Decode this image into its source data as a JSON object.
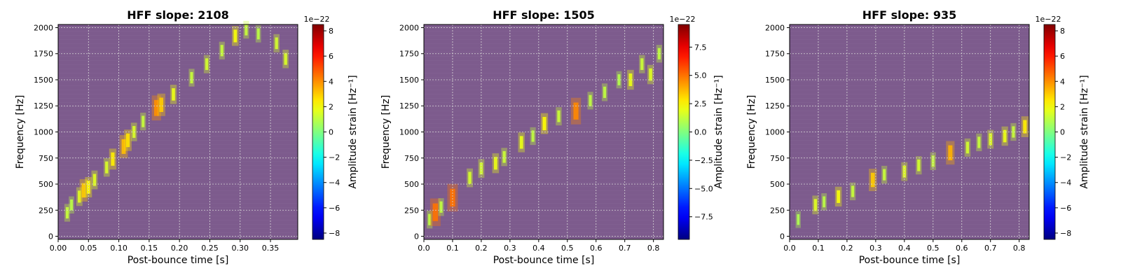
{
  "figure": {
    "colorbar_label": "Amplitude strain [Hz⁻¹]",
    "colormap": "jet",
    "background_color": "#7d5b8d"
  },
  "chart_data": [
    {
      "type": "heatmap",
      "title": "HFF slope: 2108",
      "xlabel": "Post-bounce time [s]",
      "ylabel": "Frequency [Hz]",
      "xlim": [
        0,
        0.395
      ],
      "ylim": [
        -30,
        2030
      ],
      "x_ticks": [
        0.0,
        0.05,
        0.1,
        0.15,
        0.2,
        0.25,
        0.3,
        0.35
      ],
      "x_tick_labels": [
        "0.00",
        "0.05",
        "0.10",
        "0.15",
        "0.20",
        "0.25",
        "0.30",
        "0.35"
      ],
      "y_ticks": [
        0,
        250,
        500,
        750,
        1000,
        1250,
        1500,
        1750,
        2000
      ],
      "y_tick_labels": [
        "0",
        "250",
        "500",
        "750",
        "1000",
        "1250",
        "1500",
        "1750",
        "2000"
      ],
      "grid": true,
      "colorbar": {
        "min": -8.5,
        "max": 8.5,
        "ticks": [
          -8,
          -6,
          -4,
          -2,
          0,
          2,
          4,
          6,
          8
        ],
        "tick_labels": [
          "−8",
          "−6",
          "−4",
          "−2",
          "0",
          "2",
          "4",
          "6",
          "8"
        ],
        "exponent_label": "1e−22"
      },
      "hot_spots": [
        {
          "t": 0.015,
          "f": 225,
          "v": 1.2
        },
        {
          "t": 0.022,
          "f": 300,
          "v": 1.0
        },
        {
          "t": 0.035,
          "f": 380,
          "v": 1.6
        },
        {
          "t": 0.042,
          "f": 440,
          "v": 3.0
        },
        {
          "t": 0.05,
          "f": 470,
          "v": 2.2
        },
        {
          "t": 0.06,
          "f": 540,
          "v": 1.6
        },
        {
          "t": 0.08,
          "f": 660,
          "v": 1.5
        },
        {
          "t": 0.09,
          "f": 740,
          "v": 2.4
        },
        {
          "t": 0.108,
          "f": 860,
          "v": 3.2
        },
        {
          "t": 0.115,
          "f": 920,
          "v": 2.6
        },
        {
          "t": 0.125,
          "f": 1000,
          "v": 1.5
        },
        {
          "t": 0.14,
          "f": 1100,
          "v": 1.2
        },
        {
          "t": 0.162,
          "f": 1230,
          "v": 4.0
        },
        {
          "t": 0.17,
          "f": 1260,
          "v": 3.0
        },
        {
          "t": 0.19,
          "f": 1360,
          "v": 1.8
        },
        {
          "t": 0.22,
          "f": 1520,
          "v": 1.2
        },
        {
          "t": 0.245,
          "f": 1650,
          "v": 1.4
        },
        {
          "t": 0.27,
          "f": 1780,
          "v": 1.2
        },
        {
          "t": 0.292,
          "f": 1920,
          "v": 2.0
        },
        {
          "t": 0.31,
          "f": 1980,
          "v": 1.2
        },
        {
          "t": 0.33,
          "f": 1940,
          "v": 1.0
        },
        {
          "t": 0.36,
          "f": 1850,
          "v": 1.4
        },
        {
          "t": 0.375,
          "f": 1700,
          "v": 1.5
        }
      ]
    },
    {
      "type": "heatmap",
      "title": "HFF slope: 1505",
      "xlabel": "Post-bounce time [s]",
      "ylabel": "Frequency [Hz]",
      "xlim": [
        0,
        0.835
      ],
      "ylim": [
        -30,
        2030
      ],
      "x_ticks": [
        0.0,
        0.1,
        0.2,
        0.3,
        0.4,
        0.5,
        0.6,
        0.7,
        0.8
      ],
      "x_tick_labels": [
        "0.0",
        "0.1",
        "0.2",
        "0.3",
        "0.4",
        "0.5",
        "0.6",
        "0.7",
        "0.8"
      ],
      "y_ticks": [
        0,
        250,
        500,
        750,
        1000,
        1250,
        1500,
        1750,
        2000
      ],
      "y_tick_labels": [
        "0",
        "250",
        "500",
        "750",
        "1000",
        "1250",
        "1500",
        "1750",
        "2000"
      ],
      "grid": true,
      "colorbar": {
        "min": -9.5,
        "max": 9.5,
        "ticks": [
          -7.5,
          -5.0,
          -2.5,
          0.0,
          2.5,
          5.0,
          7.5
        ],
        "tick_labels": [
          "−7.5",
          "−5.0",
          "−2.5",
          "0.0",
          "2.5",
          "5.0",
          "7.5"
        ],
        "exponent_label": "1e−22"
      },
      "hot_spots": [
        {
          "t": 0.02,
          "f": 160,
          "v": 1.2
        },
        {
          "t": 0.04,
          "f": 230,
          "v": 5.0
        },
        {
          "t": 0.06,
          "f": 280,
          "v": 1.2
        },
        {
          "t": 0.1,
          "f": 370,
          "v": 5.0
        },
        {
          "t": 0.16,
          "f": 560,
          "v": 1.6
        },
        {
          "t": 0.2,
          "f": 650,
          "v": 1.6
        },
        {
          "t": 0.25,
          "f": 700,
          "v": 2.0
        },
        {
          "t": 0.28,
          "f": 760,
          "v": 1.4
        },
        {
          "t": 0.34,
          "f": 900,
          "v": 2.0
        },
        {
          "t": 0.38,
          "f": 960,
          "v": 1.2
        },
        {
          "t": 0.42,
          "f": 1080,
          "v": 2.4
        },
        {
          "t": 0.47,
          "f": 1150,
          "v": 1.4
        },
        {
          "t": 0.53,
          "f": 1200,
          "v": 4.6
        },
        {
          "t": 0.58,
          "f": 1300,
          "v": 1.2
        },
        {
          "t": 0.63,
          "f": 1380,
          "v": 1.2
        },
        {
          "t": 0.68,
          "f": 1500,
          "v": 1.0
        },
        {
          "t": 0.72,
          "f": 1500,
          "v": 2.0
        },
        {
          "t": 0.76,
          "f": 1650,
          "v": 1.4
        },
        {
          "t": 0.79,
          "f": 1550,
          "v": 1.8
        },
        {
          "t": 0.82,
          "f": 1750,
          "v": 1.2
        }
      ]
    },
    {
      "type": "heatmap",
      "title": "HFF slope: 935",
      "xlabel": "Post-bounce time [s]",
      "ylabel": "Frequency [Hz]",
      "xlim": [
        0,
        0.835
      ],
      "ylim": [
        -30,
        2030
      ],
      "x_ticks": [
        0.0,
        0.1,
        0.2,
        0.3,
        0.4,
        0.5,
        0.6,
        0.7,
        0.8
      ],
      "x_tick_labels": [
        "0.0",
        "0.1",
        "0.2",
        "0.3",
        "0.4",
        "0.5",
        "0.6",
        "0.7",
        "0.8"
      ],
      "y_ticks": [
        0,
        250,
        500,
        750,
        1000,
        1250,
        1500,
        1750,
        2000
      ],
      "y_tick_labels": [
        "0",
        "250",
        "500",
        "750",
        "1000",
        "1250",
        "1500",
        "1750",
        "2000"
      ],
      "grid": true,
      "colorbar": {
        "min": -8.5,
        "max": 8.5,
        "ticks": [
          -8,
          -6,
          -4,
          -2,
          0,
          2,
          4,
          6,
          8
        ],
        "tick_labels": [
          "−8",
          "−6",
          "−4",
          "−2",
          "0",
          "2",
          "4",
          "6",
          "8"
        ],
        "exponent_label": "1e−22"
      },
      "hot_spots": [
        {
          "t": 0.03,
          "f": 160,
          "v": 0.8
        },
        {
          "t": 0.09,
          "f": 300,
          "v": 1.6
        },
        {
          "t": 0.12,
          "f": 330,
          "v": 1.0
        },
        {
          "t": 0.17,
          "f": 380,
          "v": 2.0
        },
        {
          "t": 0.22,
          "f": 430,
          "v": 1.2
        },
        {
          "t": 0.29,
          "f": 540,
          "v": 3.0
        },
        {
          "t": 0.33,
          "f": 590,
          "v": 1.2
        },
        {
          "t": 0.4,
          "f": 620,
          "v": 1.6
        },
        {
          "t": 0.45,
          "f": 680,
          "v": 1.4
        },
        {
          "t": 0.5,
          "f": 720,
          "v": 1.2
        },
        {
          "t": 0.56,
          "f": 800,
          "v": 3.4
        },
        {
          "t": 0.62,
          "f": 850,
          "v": 1.4
        },
        {
          "t": 0.66,
          "f": 900,
          "v": 1.2
        },
        {
          "t": 0.7,
          "f": 930,
          "v": 1.6
        },
        {
          "t": 0.75,
          "f": 960,
          "v": 1.8
        },
        {
          "t": 0.78,
          "f": 1000,
          "v": 1.2
        },
        {
          "t": 0.82,
          "f": 1050,
          "v": 2.4
        }
      ]
    }
  ]
}
